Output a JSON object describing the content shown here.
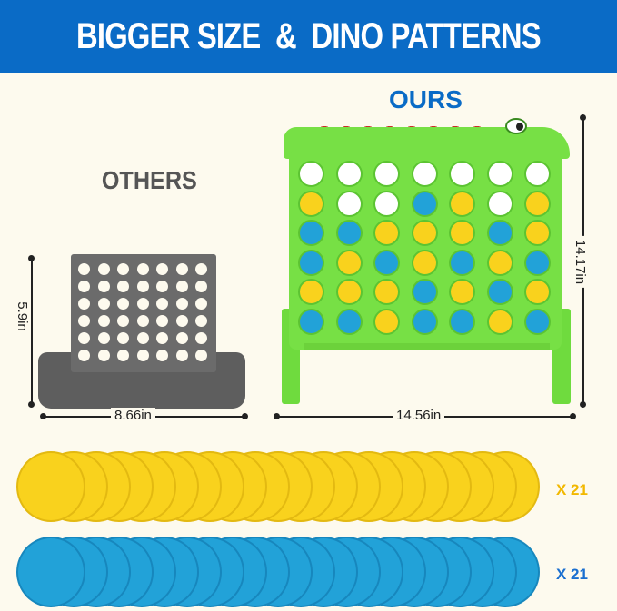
{
  "header": {
    "title": "BIGGER SIZE  &  DINO PATTERNS"
  },
  "labels": {
    "ours": "OURS",
    "others": "OTHERS"
  },
  "dimensions": {
    "others_height": "5.9in",
    "others_width": "8.66in",
    "ours_width": "14.56in",
    "ours_height": "14.17in"
  },
  "board_pattern": [
    "wwwwwww",
    "ywwbywy",
    "bbyyyby",
    "bybybyb",
    "yyybyby",
    "bbybbyb"
  ],
  "chips": {
    "yellow_count": "X 21",
    "blue_count": "X 21",
    "yellow_color": "#f9d21d",
    "blue_color": "#22a2d8",
    "yellow_label_color": "#f2b800",
    "blue_label_color": "#1a6fd0"
  },
  "colors": {
    "banner": "#0a6bc6",
    "board_green": "#77e045",
    "others_gray": "#6b6b6b",
    "background": "#fdfaee"
  }
}
